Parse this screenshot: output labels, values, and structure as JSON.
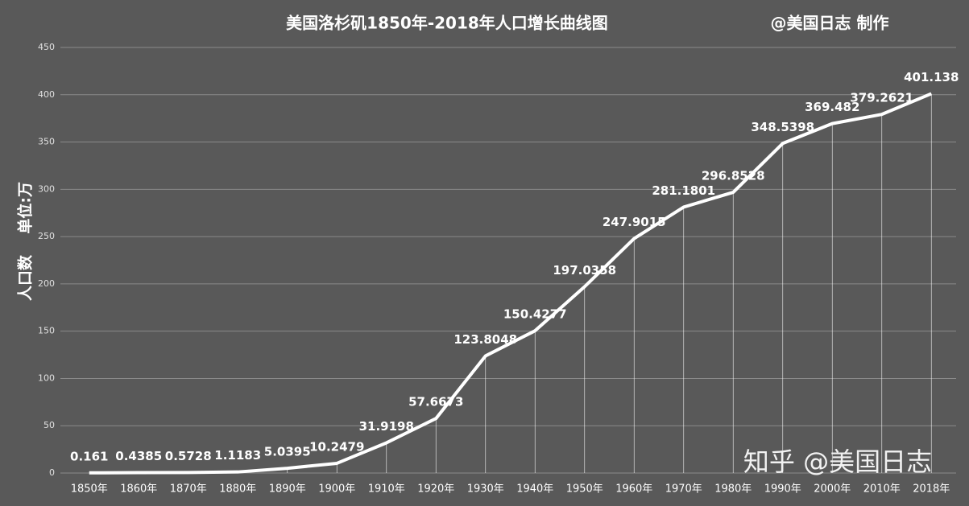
{
  "chart_data": {
    "type": "line",
    "title": "美国洛杉矶1850年-2018年人口增长曲线图",
    "annotation": "@美国日志 制作",
    "watermark": "知乎 @美国日志",
    "y_label": "人口数    单位:万",
    "categories": [
      "1850年",
      "1860年",
      "1870年",
      "1880年",
      "1890年",
      "1900年",
      "1910年",
      "1920年",
      "1930年",
      "1940年",
      "1950年",
      "1960年",
      "1970年",
      "1980年",
      "1990年",
      "2000年",
      "2010年",
      "2018年"
    ],
    "values": [
      0.161,
      0.4385,
      0.5728,
      1.1183,
      5.0395,
      10.2479,
      31.9198,
      57.6673,
      123.8048,
      150.4277,
      197.0358,
      247.9015,
      281.1801,
      296.8528,
      348.5398,
      369.482,
      379.2621,
      401.138
    ],
    "color": "#ffffff",
    "ylim": [
      0,
      450
    ],
    "yticks": [
      0,
      50,
      100,
      150,
      200,
      250,
      300,
      350,
      400,
      450
    ],
    "grid": true
  }
}
